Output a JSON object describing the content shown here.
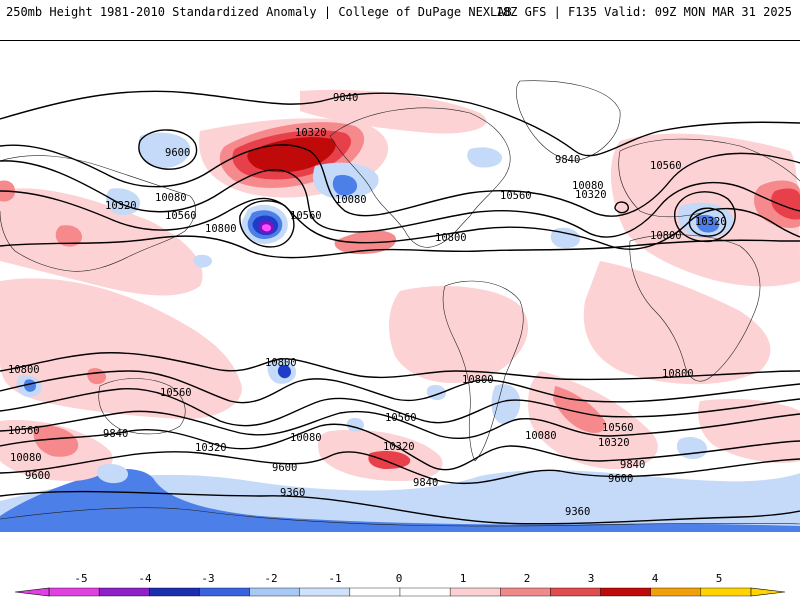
{
  "header": {
    "left": "250mb Height 1981-2010 Standardized Anomaly | College of DuPage NEXLAB",
    "right": "18Z GFS | F135 Valid: 09Z MON MAR 31 2025"
  },
  "contour_labels": [
    {
      "id": "l1",
      "text": "9840"
    },
    {
      "id": "l2",
      "text": "10320"
    },
    {
      "id": "l3",
      "text": "9600"
    },
    {
      "id": "l4",
      "text": "10080"
    },
    {
      "id": "l5",
      "text": "10560"
    },
    {
      "id": "l6",
      "text": "10320"
    },
    {
      "id": "l7",
      "text": "10080"
    },
    {
      "id": "l8",
      "text": "10560"
    },
    {
      "id": "l9",
      "text": "10800"
    },
    {
      "id": "l10",
      "text": "10800"
    },
    {
      "id": "l11",
      "text": "10560"
    },
    {
      "id": "l12",
      "text": "9840"
    },
    {
      "id": "l13",
      "text": "10080"
    },
    {
      "id": "l14",
      "text": "10320"
    },
    {
      "id": "l15",
      "text": "10560"
    },
    {
      "id": "l16",
      "text": "10320"
    },
    {
      "id": "l17",
      "text": "10800"
    },
    {
      "id": "l18",
      "text": "10800"
    },
    {
      "id": "l19",
      "text": "10800"
    },
    {
      "id": "l20",
      "text": "10560"
    },
    {
      "id": "l21",
      "text": "10800"
    },
    {
      "id": "l22",
      "text": "10800"
    },
    {
      "id": "l23",
      "text": "10560"
    },
    {
      "id": "l24",
      "text": "10080"
    },
    {
      "id": "l25",
      "text": "9840"
    },
    {
      "id": "l26",
      "text": "10320"
    },
    {
      "id": "l27",
      "text": "10080"
    },
    {
      "id": "l28",
      "text": "10560"
    },
    {
      "id": "l29",
      "text": "9600"
    },
    {
      "id": "l30",
      "text": "10320"
    },
    {
      "id": "l31",
      "text": "9840"
    },
    {
      "id": "l32",
      "text": "10560"
    },
    {
      "id": "l33",
      "text": "10080"
    },
    {
      "id": "l34",
      "text": "10320"
    },
    {
      "id": "l35",
      "text": "9840"
    },
    {
      "id": "l36",
      "text": "9600"
    },
    {
      "id": "l37",
      "text": "9360"
    },
    {
      "id": "l38",
      "text": "9360"
    },
    {
      "id": "l39",
      "text": "9600"
    }
  ],
  "colorbar": {
    "ticks": [
      "-5",
      "-4",
      "-3",
      "-2",
      "-1",
      "0",
      "1",
      "2",
      "3",
      "4",
      "5"
    ],
    "colors": [
      "#e040e0",
      "#8e1fc9",
      "#1a2fb0",
      "#3a63e0",
      "#a9c9f5",
      "#cfe2fb",
      "#ffffff",
      "#ffffff",
      "#fbd0d2",
      "#f08a8a",
      "#e14c4c",
      "#c00a0a",
      "#f2a007",
      "#ffd400"
    ]
  },
  "anomaly_colors": {
    "pos1": "#fcd2d4",
    "pos2": "#f5898c",
    "pos3": "#e8404a",
    "pos4": "#c00a0a",
    "neg1": "#c4daf8",
    "neg2": "#4d7fe8",
    "neg3": "#1e3cc8",
    "neg4": "#7a14c0",
    "neg5": "#ff50ff"
  }
}
